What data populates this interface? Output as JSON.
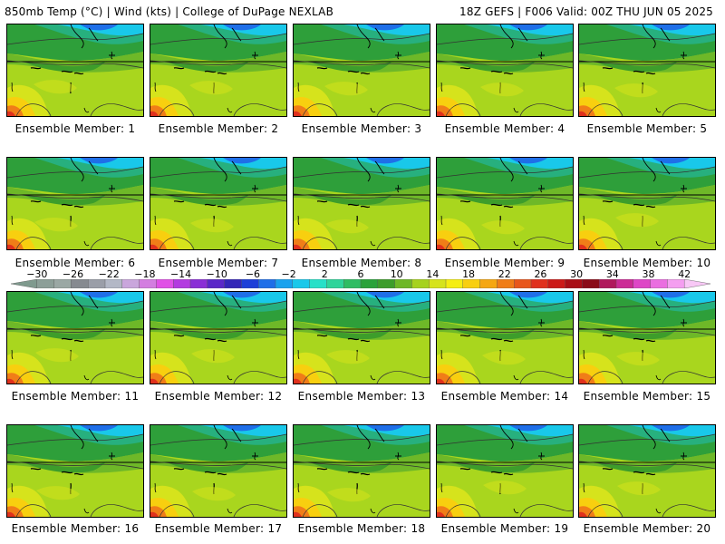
{
  "header": {
    "left": "850mb Temp (°C) | Wind (kts) | College of DuPage NEXLAB",
    "right": "18Z GEFS | F006 Valid: 00Z THU JUN 05 2025"
  },
  "members": [
    {
      "label": "Ensemble Member: 1"
    },
    {
      "label": "Ensemble Member: 2"
    },
    {
      "label": "Ensemble Member: 3"
    },
    {
      "label": "Ensemble Member: 4"
    },
    {
      "label": "Ensemble Member: 5"
    },
    {
      "label": "Ensemble Member: 6"
    },
    {
      "label": "Ensemble Member: 7"
    },
    {
      "label": "Ensemble Member: 8"
    },
    {
      "label": "Ensemble Member: 9"
    },
    {
      "label": "Ensemble Member: 10"
    },
    {
      "label": "Ensemble Member: 11"
    },
    {
      "label": "Ensemble Member: 12"
    },
    {
      "label": "Ensemble Member: 13"
    },
    {
      "label": "Ensemble Member: 14"
    },
    {
      "label": "Ensemble Member: 15"
    },
    {
      "label": "Ensemble Member: 16"
    },
    {
      "label": "Ensemble Member: 17"
    },
    {
      "label": "Ensemble Member: 18"
    },
    {
      "label": "Ensemble Member: 19"
    },
    {
      "label": "Ensemble Member: 20"
    }
  ],
  "colorbar": {
    "tick_labels": [
      "−30",
      "−26",
      "−22",
      "−18",
      "−14",
      "−10",
      "−6",
      "−2",
      "2",
      "6",
      "10",
      "14",
      "18",
      "22",
      "26",
      "30",
      "34",
      "38",
      "42"
    ],
    "colors": [
      "#7f9a8e",
      "#8c9f98",
      "#9aa8a4",
      "#868a90",
      "#9a9ea8",
      "#b3b8c6",
      "#c9a6dc",
      "#d37ee0",
      "#e051e6",
      "#b33be0",
      "#8a2fd6",
      "#5a28c8",
      "#3326b8",
      "#1d3fd8",
      "#1f6fe8",
      "#1aa2ee",
      "#19c8ea",
      "#27e0c8",
      "#2fd49a",
      "#2ebd63",
      "#2aa23a",
      "#3d9d2b",
      "#6eb828",
      "#a6d21f",
      "#d6e31c",
      "#f5ee12",
      "#f8cf0f",
      "#f5a712",
      "#f07d18",
      "#e8561c",
      "#e0311d",
      "#cc1a18",
      "#a90e16",
      "#8a0b18",
      "#b0185c",
      "#cc2b96",
      "#de46c6",
      "#ea6ee0",
      "#f49ef0",
      "#f8c8f6"
    ]
  }
}
